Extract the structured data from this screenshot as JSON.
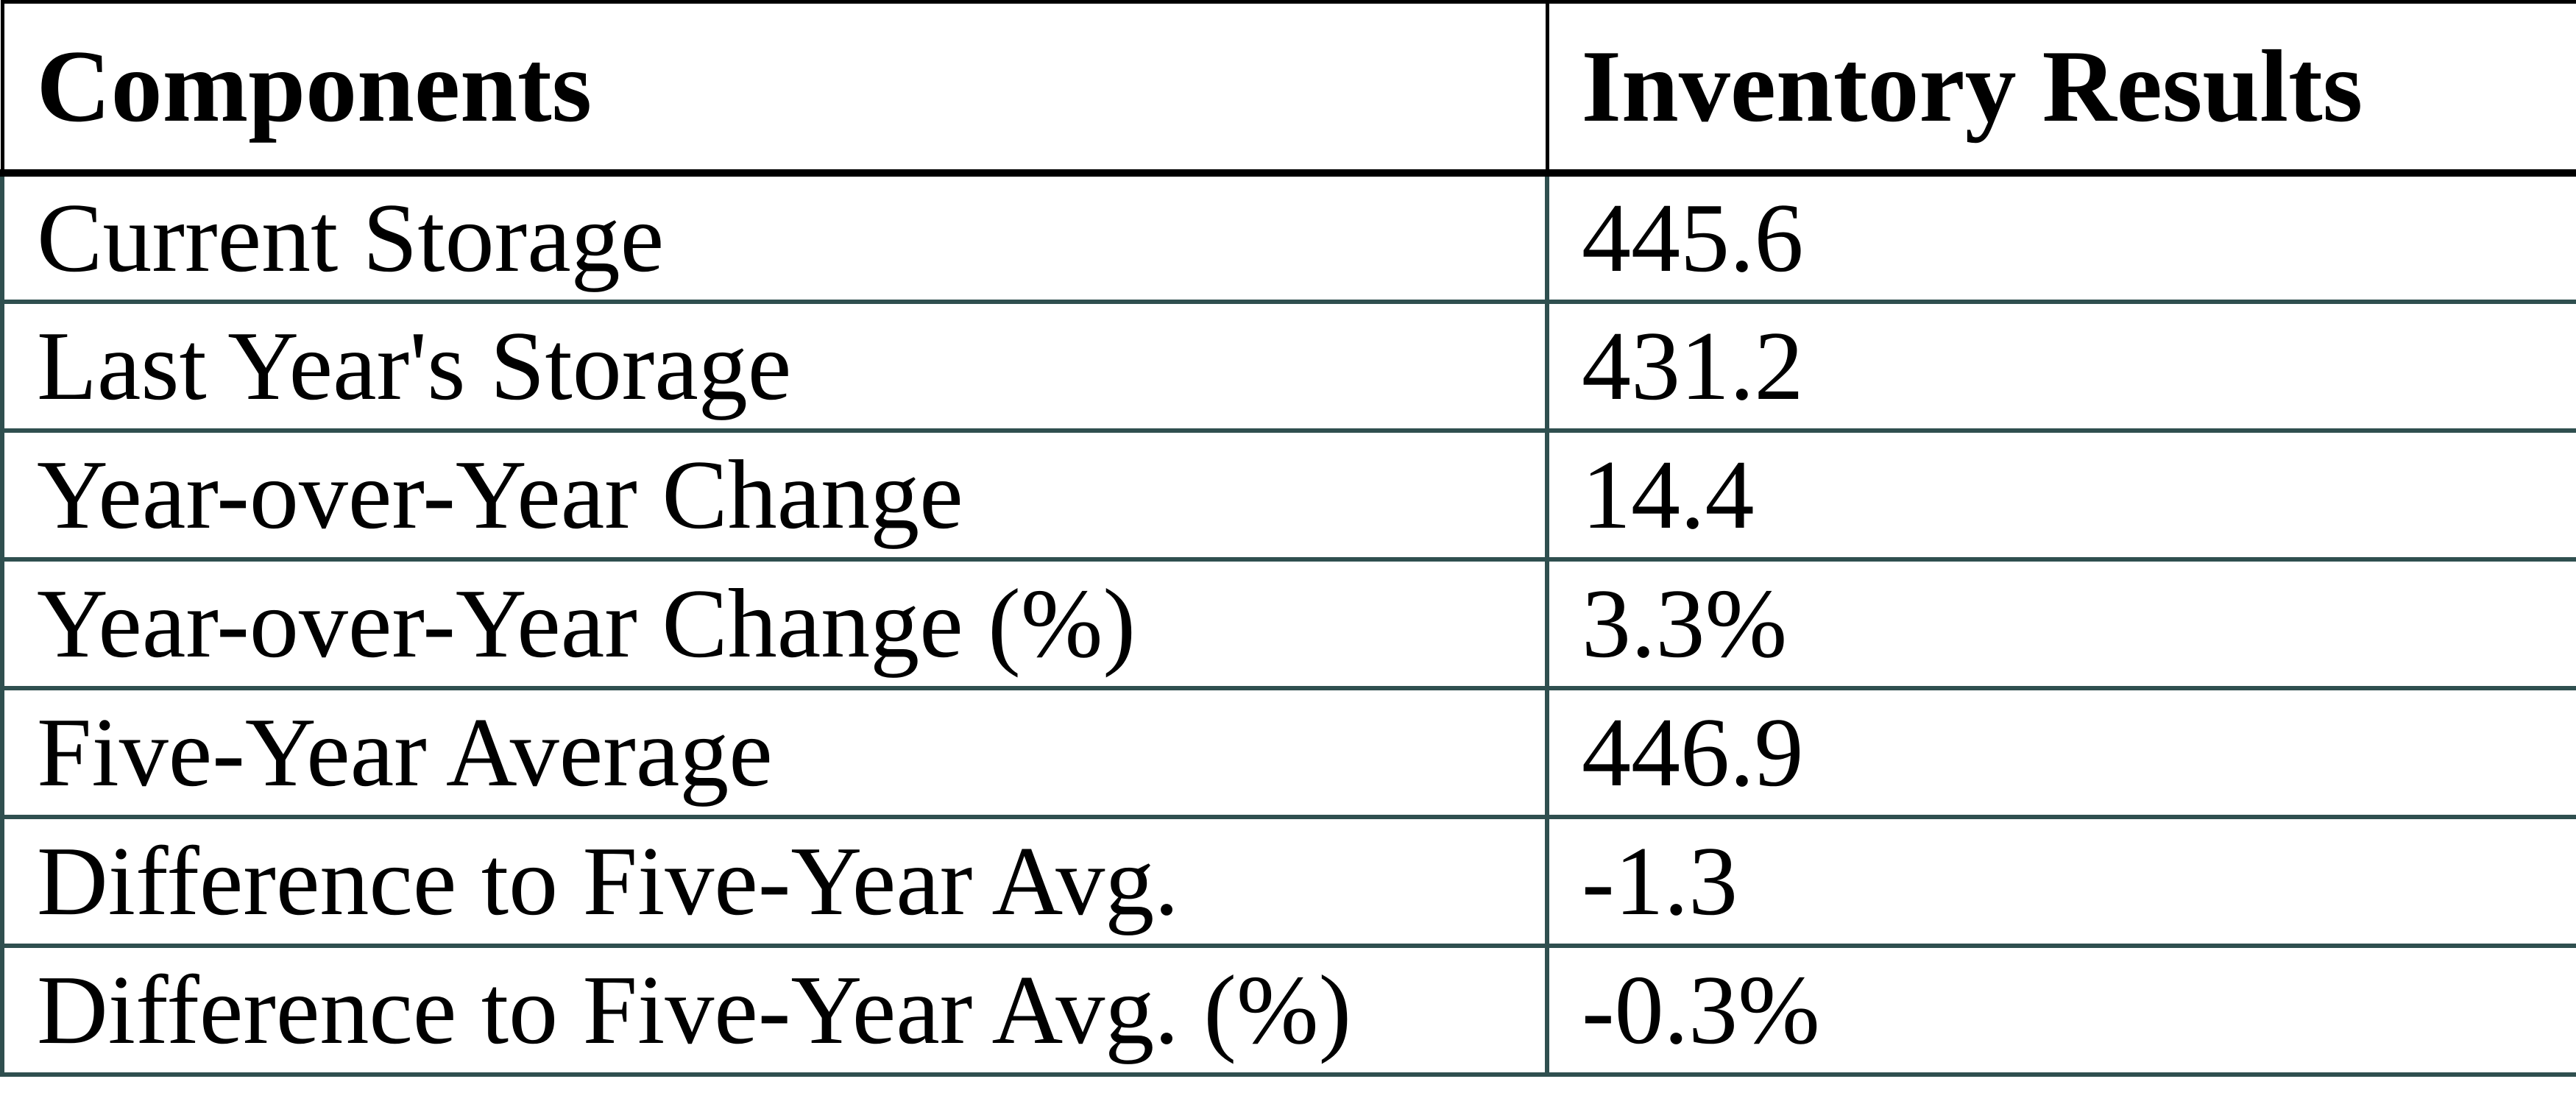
{
  "chart_data": {
    "type": "table",
    "columns": [
      "Components",
      "Inventory Results"
    ],
    "rows": [
      {
        "component": "Current Storage",
        "result": "445.6"
      },
      {
        "component": "Last Year's Storage",
        "result": "431.2"
      },
      {
        "component": "Year-over-Year Change",
        "result": "14.4"
      },
      {
        "component": "Year-over-Year Change (%)",
        "result": "3.3%"
      },
      {
        "component": "Five-Year Average",
        "result": "446.9"
      },
      {
        "component": "Difference to Five-Year Avg.",
        "result": "-1.3"
      },
      {
        "component": "Difference to Five-Year Avg. (%)",
        "result": "-0.3%"
      }
    ]
  },
  "colors": {
    "header_border": "#000000",
    "grid_border": "#2F4F4F",
    "text": "#000000",
    "background": "#FFFFFF"
  }
}
